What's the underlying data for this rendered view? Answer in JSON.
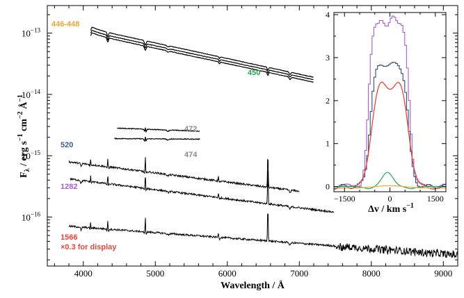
{
  "chart_data": [
    {
      "type": "line",
      "title": "",
      "xlabel": "Wavelength / Å",
      "ylabel": "Fλ / erg s⁻¹ cm⁻² Å⁻¹",
      "ylabel_parts": {
        "base": "F",
        "sub": "λ",
        "t1": " / erg s",
        "e1": "−1",
        "t2": " cm",
        "e2": "−2",
        "t3": " Å",
        "e3": "−1"
      },
      "xscale": "linear",
      "yscale": "log",
      "xlim": [
        3500,
        9200
      ],
      "ylim_log10": [
        -16.8,
        -12.55
      ],
      "xticks": [
        "4000",
        "5000",
        "6000",
        "7000",
        "8000",
        "9000"
      ],
      "yticks": [
        {
          "base": "10",
          "exp": "−13",
          "log": -13
        },
        {
          "base": "10",
          "exp": "−14",
          "log": -14
        },
        {
          "base": "10",
          "exp": "−15",
          "log": -15
        },
        {
          "base": "10",
          "exp": "−16",
          "log": -16
        }
      ],
      "series": [
        {
          "name": "446",
          "x_range": [
            4100,
            7200
          ],
          "log_start": -12.93,
          "log_end": -13.72,
          "color": "#000000"
        },
        {
          "name": "447",
          "x_range": [
            4100,
            7200
          ],
          "log_start": -12.98,
          "log_end": -13.76,
          "color": "#000000"
        },
        {
          "name": "448",
          "x_range": [
            4100,
            7200
          ],
          "log_start": -13.02,
          "log_end": -13.8,
          "color": "#000000"
        },
        {
          "name": "472",
          "x_range": [
            4470,
            5620
          ],
          "log_start": -14.55,
          "log_end": -14.6,
          "color": "#000000"
        },
        {
          "name": "474",
          "x_range": [
            4430,
            5620
          ],
          "log_start": -14.72,
          "log_end": -14.73,
          "color": "#000000"
        },
        {
          "name": "520",
          "x_range": [
            3800,
            7000
          ],
          "log_start": -15.1,
          "log_end": -15.58,
          "color": "#000000"
        },
        {
          "name": "1282",
          "x_range": [
            3820,
            7480
          ],
          "log_start": -15.38,
          "log_end": -15.92,
          "color": "#000000"
        },
        {
          "name": "1566",
          "x_range": [
            3800,
            9200
          ],
          "log_start": -16.15,
          "log_end": -16.62,
          "color": "#000000"
        }
      ],
      "annotations": [
        {
          "text": "446-448",
          "color": "#e8a33b"
        },
        {
          "text": "450",
          "color": "#2e9e58"
        },
        {
          "text": "472",
          "color": "#8a8a8a"
        },
        {
          "text": "474",
          "color": "#8a8a8a"
        },
        {
          "text": "520",
          "color": "#3f5a86"
        },
        {
          "text": "1282",
          "color": "#a35fc7"
        },
        {
          "text": "1566",
          "color": "#e2453b"
        },
        {
          "text": "×0.3 for display",
          "color": "#e2453b"
        }
      ]
    },
    {
      "type": "line",
      "title": "",
      "xlabel": "Δv / km s⁻¹",
      "xlabel_parts": {
        "text": "Δv / km s",
        "exp": "−1"
      },
      "ylabel": "",
      "xlim": [
        -1850,
        1850
      ],
      "ylim": [
        -0.12,
        4.05
      ],
      "xticks": [
        "−1500",
        "0",
        "1500"
      ],
      "yticks": [
        "0",
        "1",
        "2",
        "3",
        "4"
      ],
      "series": [
        {
          "name": "profile-purple",
          "color": "#a35fc7",
          "peak": 3.85
        },
        {
          "name": "profile-navy",
          "color": "#2f4a78",
          "peak": 2.85
        },
        {
          "name": "model-red",
          "color": "#e2453b",
          "peak": 2.5
        },
        {
          "name": "model-green",
          "color": "#2e9e58",
          "peak": 0.33
        },
        {
          "name": "model-orange",
          "color": "#e8a33b",
          "peak": 0.08
        }
      ]
    }
  ]
}
